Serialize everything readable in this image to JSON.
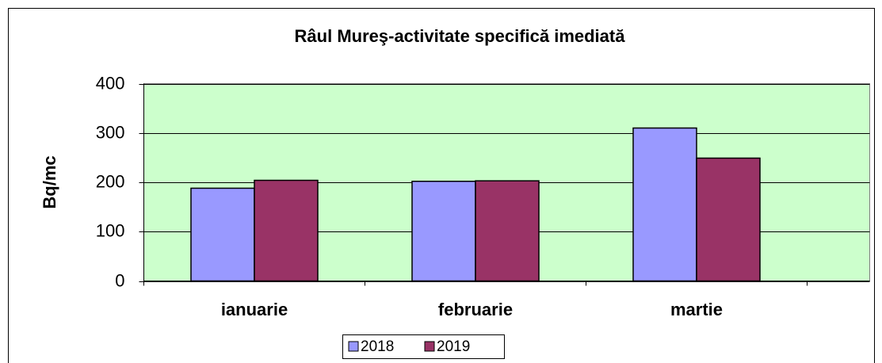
{
  "chart_data": {
    "type": "bar",
    "title": "Râul Mureş-activitate specifică imediată",
    "y_label": "Bq/mc",
    "categories": [
      "ianuarie",
      "februarie",
      "martie"
    ],
    "series": [
      {
        "name": "2018",
        "color": "#9999ff",
        "values": [
          188,
          202,
          310
        ]
      },
      {
        "name": "2019",
        "color": "#993366",
        "values": [
          204,
          203,
          249
        ]
      }
    ],
    "ylim": [
      0,
      400
    ],
    "yticks": [
      0,
      100,
      200,
      300,
      400
    ],
    "grid": true,
    "legend": "bottom",
    "plot_background": "#ccffcc"
  }
}
